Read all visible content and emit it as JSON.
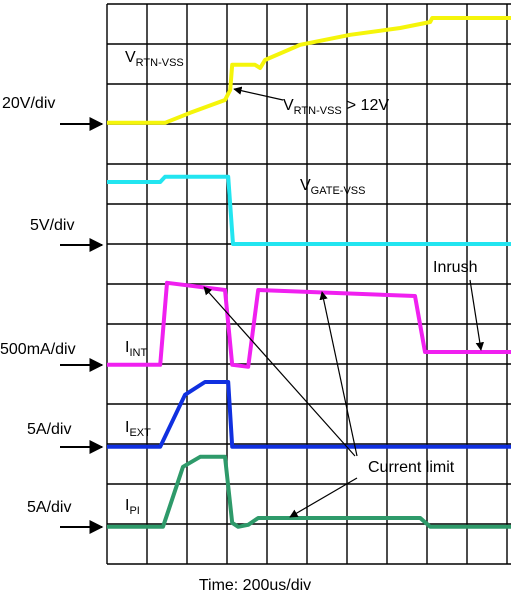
{
  "chart_data": {
    "type": "line",
    "x_label": "Time: 200us/div",
    "xlim": [
      0,
      10.1
    ],
    "ylim": [
      0,
      14
    ],
    "xticks": [
      0,
      1,
      2,
      3,
      4,
      5,
      6,
      7,
      8,
      9,
      10
    ],
    "yticks": [
      0,
      1,
      2,
      3,
      4,
      5,
      6,
      7,
      8,
      9,
      10,
      11,
      12,
      13,
      14
    ],
    "grid": true,
    "series": [
      {
        "name": "V",
        "subscript": "RTN-VSS",
        "scale": "20V/div",
        "color": "#f5f50a",
        "x": [
          0,
          1.45,
          2.08,
          2.95,
          3.08,
          3.13,
          3.7,
          3.83,
          3.95,
          4.83,
          6.08,
          7.33,
          8.08,
          8.13,
          10.1
        ],
        "values": [
          11.03,
          11.03,
          11.28,
          11.6,
          11.85,
          12.48,
          12.48,
          12.4,
          12.6,
          12.98,
          13.23,
          13.4,
          13.55,
          13.65,
          13.65
        ]
      },
      {
        "name": "V",
        "subscript": "GATE-VSS",
        "scale": "5V/div",
        "color": "#22e5f0",
        "x": [
          0,
          1.33,
          1.45,
          3.03,
          3.15,
          10.1
        ],
        "values": [
          9.55,
          9.55,
          9.68,
          9.68,
          8.0,
          8.0
        ]
      },
      {
        "name": "I",
        "subscript": "INT",
        "scale": "500mA/div",
        "color": "#f020f0",
        "x": [
          0,
          1.33,
          1.5,
          2.95,
          3.13,
          3.53,
          3.78,
          7.7,
          7.95,
          10.1
        ],
        "values": [
          4.98,
          4.98,
          7.03,
          6.85,
          4.98,
          4.93,
          6.85,
          6.7,
          5.3,
          5.3
        ]
      },
      {
        "name": "I",
        "subscript": "EXT",
        "scale": "5A/div",
        "color": "#1030e0",
        "x": [
          0,
          1.33,
          1.95,
          2.45,
          3.03,
          3.13,
          10.1
        ],
        "values": [
          2.93,
          2.93,
          4.23,
          4.55,
          4.55,
          2.93,
          2.93
        ]
      },
      {
        "name": "I",
        "subscript": "PI",
        "scale": "5A/div",
        "color": "#2e9a6a",
        "x": [
          0,
          1.4,
          1.9,
          2.33,
          2.95,
          3.13,
          3.28,
          3.53,
          3.78,
          7.83,
          8.08,
          10.1
        ],
        "values": [
          0.93,
          0.93,
          2.43,
          2.68,
          2.68,
          1.03,
          0.93,
          0.98,
          1.15,
          1.15,
          0.93,
          0.93
        ]
      }
    ],
    "threshold_label": [
      "V",
      "RTN-VSS",
      "> 12V"
    ],
    "labels": [
      "Current limit",
      "Inrush"
    ]
  }
}
